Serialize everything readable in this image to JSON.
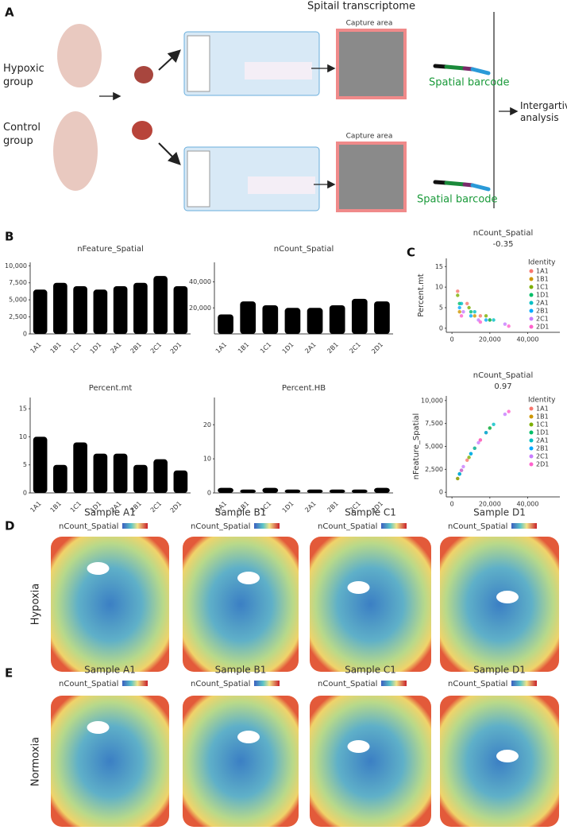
{
  "figure": {
    "panel_a": {
      "label": "A",
      "title": "Spitail transcriptome",
      "groups": [
        "Hypoxic group",
        "Control group"
      ],
      "capture_labels": [
        "Capture area",
        "Capture area"
      ],
      "barcode_labels": [
        "Spatial barcode",
        "Spatial barcode"
      ],
      "analysis": "Intergartive analysis"
    },
    "panel_b": {
      "label": "B"
    },
    "panel_c": {
      "label": "C"
    },
    "panel_d": {
      "label": "D",
      "row_label": "Hypoxia",
      "samples": [
        "Sample A1",
        "Sample B1",
        "Sample C1",
        "Sample D1"
      ],
      "legend_title": "nCount_Spatial"
    },
    "panel_e": {
      "label": "E",
      "row_label": "Normoxia",
      "samples": [
        "Sample A1",
        "Sample B1",
        "Sample C1",
        "Sample D1"
      ],
      "legend_title": "nCount_Spatial"
    }
  },
  "chart_data": [
    {
      "type": "violin",
      "title": "nFeature_Spatial",
      "categories": [
        "1A1",
        "1B1",
        "1C1",
        "1D1",
        "2A1",
        "2B1",
        "2C1",
        "2D1"
      ],
      "values": [
        6500,
        7500,
        7000,
        6500,
        7000,
        7500,
        8500,
        7000
      ],
      "color": "#000000",
      "ylim": [
        0,
        10500
      ],
      "yticks": [
        0,
        {
          "value": 2500,
          "label": "2,500"
        },
        {
          "value": 5000,
          "label": "5,000"
        },
        {
          "value": 7500,
          "label": "7,500"
        },
        {
          "value": 10000,
          "label": "10,000"
        }
      ]
    },
    {
      "type": "violin",
      "title": "nCount_Spatial",
      "categories": [
        "1A1",
        "1B1",
        "1C1",
        "1D1",
        "2A1",
        "2B1",
        "2C1",
        "2D1"
      ],
      "values": [
        15000,
        25000,
        22000,
        20000,
        20000,
        22000,
        27000,
        25000
      ],
      "color": "#000000",
      "ylim": [
        0,
        55000
      ],
      "yticks": [
        {
          "value": 20000,
          "label": "20,000"
        },
        {
          "value": 40000,
          "label": "40,000"
        }
      ]
    },
    {
      "type": "violin",
      "title": "Percent.mt",
      "categories": [
        "1A1",
        "1B1",
        "1C1",
        "1D1",
        "2A1",
        "2B1",
        "2C1",
        "2D1"
      ],
      "values": [
        10,
        5,
        9,
        7,
        7,
        5,
        6,
        4
      ],
      "color": "#000000",
      "ylim": [
        0,
        17
      ],
      "yticks": [
        0,
        5,
        10,
        15
      ]
    },
    {
      "type": "violin",
      "title": "Percent.HB",
      "categories": [
        "1A1",
        "1B1",
        "1C1",
        "1D1",
        "2A1",
        "2B1",
        "2C1",
        "2D1"
      ],
      "values": [
        1.5,
        1,
        1.5,
        1,
        1,
        1,
        1,
        1.5
      ],
      "color": "#000000",
      "ylim": [
        0,
        28
      ],
      "yticks": [
        0,
        10,
        20
      ]
    },
    {
      "type": "scatter",
      "title": "nCount_Spatial",
      "subtitle": "-0.35",
      "y_label": "Percent.mt",
      "legend_title": "Identity",
      "xlim": [
        -3000,
        57000
      ],
      "ylim": [
        -1,
        17
      ],
      "xticks": [
        0,
        {
          "value": 20000,
          "label": "20,000"
        },
        {
          "value": 40000,
          "label": "40,000"
        }
      ],
      "yticks": [
        0,
        5,
        10,
        15
      ],
      "series": [
        {
          "name": "1A1",
          "color": "#f8766d",
          "x": [
            3000,
            8000,
            15000
          ],
          "values": [
            9,
            6,
            3
          ]
        },
        {
          "name": "1B1",
          "color": "#cd9600",
          "x": [
            4000,
            12000,
            20000
          ],
          "values": [
            4,
            3,
            2
          ]
        },
        {
          "name": "1C1",
          "color": "#7cae00",
          "x": [
            3000,
            9000,
            18000
          ],
          "values": [
            8,
            5,
            3
          ]
        },
        {
          "name": "1D1",
          "color": "#00be67",
          "x": [
            4000,
            10000,
            20000
          ],
          "values": [
            6,
            4,
            2
          ]
        },
        {
          "name": "2A1",
          "color": "#00bfc4",
          "x": [
            5000,
            12000,
            22000
          ],
          "values": [
            6,
            4,
            2
          ]
        },
        {
          "name": "2B1",
          "color": "#00a9ff",
          "x": [
            4000,
            10000,
            18000
          ],
          "values": [
            5,
            3,
            2
          ]
        },
        {
          "name": "2C1",
          "color": "#c77cff",
          "x": [
            6000,
            14000,
            28000
          ],
          "values": [
            4,
            2,
            1
          ]
        },
        {
          "name": "2D1",
          "color": "#ff61cc",
          "x": [
            5000,
            15000,
            30000
          ],
          "values": [
            3,
            1.5,
            0.5
          ]
        }
      ]
    },
    {
      "type": "scatter",
      "title": "nCount_Spatial",
      "subtitle": "0.97",
      "y_label": "nFeature_Spatial",
      "legend_title": "Identity",
      "xlim": [
        -3000,
        57000
      ],
      "ylim": [
        -500,
        10500
      ],
      "xticks": [
        0,
        {
          "value": 20000,
          "label": "20,000"
        },
        {
          "value": 40000,
          "label": "40,000"
        }
      ],
      "yticks": [
        0,
        {
          "value": 2500,
          "label": "2,500"
        },
        {
          "value": 5000,
          "label": "5,000"
        },
        {
          "value": 7500,
          "label": "7,500"
        },
        {
          "value": 10000,
          "label": "10,000"
        }
      ],
      "series": [
        {
          "name": "1A1",
          "color": "#f8766d",
          "x": [
            3000,
            8000,
            15000
          ],
          "values": [
            1500,
            3500,
            5700
          ]
        },
        {
          "name": "1B1",
          "color": "#cd9600",
          "x": [
            4000,
            12000,
            20000
          ],
          "values": [
            2000,
            4800,
            7000
          ]
        },
        {
          "name": "1C1",
          "color": "#7cae00",
          "x": [
            3000,
            9000,
            18000
          ],
          "values": [
            1500,
            3800,
            6500
          ]
        },
        {
          "name": "1D1",
          "color": "#00be67",
          "x": [
            4000,
            10000,
            20000
          ],
          "values": [
            2000,
            4200,
            7000
          ]
        },
        {
          "name": "2A1",
          "color": "#00bfc4",
          "x": [
            5000,
            12000,
            22000
          ],
          "values": [
            2400,
            4800,
            7400
          ]
        },
        {
          "name": "2B1",
          "color": "#00a9ff",
          "x": [
            4000,
            10000,
            18000
          ],
          "values": [
            2000,
            4200,
            6500
          ]
        },
        {
          "name": "2C1",
          "color": "#c77cff",
          "x": [
            6000,
            14000,
            28000
          ],
          "values": [
            2800,
            5400,
            8500
          ]
        },
        {
          "name": "2D1",
          "color": "#ff61cc",
          "x": [
            5000,
            15000,
            30000
          ],
          "values": [
            2400,
            5700,
            8800
          ]
        }
      ]
    }
  ]
}
